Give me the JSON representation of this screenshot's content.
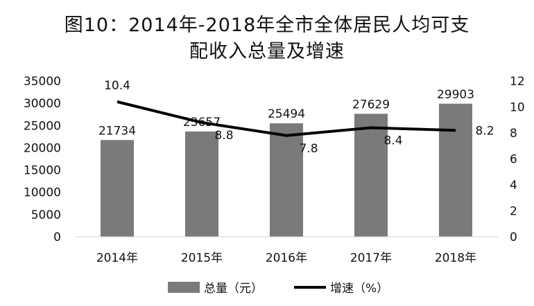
{
  "title_line1": "图10：2014年-2018年全市全体居民人均可支",
  "title_line2": "配收入总量及增速",
  "colors": {
    "bar": "#7a7a7a",
    "line": "#000000"
  },
  "chart_data": {
    "type": "bar+line",
    "categories": [
      "2014年",
      "2015年",
      "2016年",
      "2017年",
      "2018年"
    ],
    "series": [
      {
        "name": "总量（元）",
        "type": "bar",
        "axis": "left",
        "values": [
          21734,
          23657,
          25494,
          27629,
          29903
        ]
      },
      {
        "name": "增速（%）",
        "type": "line",
        "axis": "right",
        "values": [
          10.4,
          8.8,
          7.8,
          8.4,
          8.2
        ]
      }
    ],
    "left_axis": {
      "ylim": [
        0,
        35000
      ],
      "ticks": [
        0,
        5000,
        10000,
        15000,
        20000,
        25000,
        30000,
        35000
      ]
    },
    "right_axis": {
      "ylim": [
        0,
        12
      ],
      "ticks": [
        0,
        2,
        4,
        6,
        8,
        10,
        12
      ]
    },
    "legend": {
      "placement": "bottom",
      "items": [
        "总量（元）",
        "增速（%）"
      ]
    },
    "grid": false
  }
}
